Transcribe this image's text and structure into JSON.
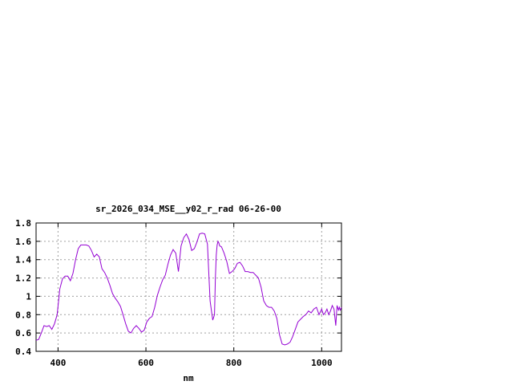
{
  "chart_data": {
    "type": "line",
    "title": "sr_2026_034_MSE__y02_r_rad 06-26-00",
    "xlabel": "nm",
    "ylabel": "",
    "xlim": [
      350,
      1045
    ],
    "ylim": [
      0.4,
      1.8
    ],
    "xticks": [
      {
        "value": 400,
        "label": "400"
      },
      {
        "value": 600,
        "label": "600"
      },
      {
        "value": 800,
        "label": "800"
      },
      {
        "value": 1000,
        "label": "1000"
      }
    ],
    "yticks": [
      {
        "value": 0.4,
        "label": "0.4"
      },
      {
        "value": 0.6,
        "label": "0.6"
      },
      {
        "value": 0.8,
        "label": "0.8"
      },
      {
        "value": 1.0,
        "label": "1"
      },
      {
        "value": 1.2,
        "label": "1.2"
      },
      {
        "value": 1.4,
        "label": "1.4"
      },
      {
        "value": 1.6,
        "label": "1.6"
      },
      {
        "value": 1.8,
        "label": "1.8"
      }
    ],
    "grid": true,
    "series": [
      {
        "color": "#9400d3",
        "x": [
          350,
          356,
          362,
          368,
          374,
          380,
          386,
          392,
          398,
          404,
          410,
          416,
          422,
          428,
          434,
          440,
          446,
          452,
          458,
          464,
          470,
          476,
          482,
          488,
          494,
          500,
          506,
          512,
          518,
          524,
          530,
          536,
          542,
          548,
          554,
          560,
          566,
          572,
          578,
          584,
          590,
          596,
          602,
          608,
          614,
          620,
          626,
          632,
          638,
          644,
          650,
          656,
          662,
          668,
          674,
          680,
          686,
          692,
          698,
          704,
          710,
          716,
          722,
          728,
          734,
          740,
          746,
          752,
          756,
          758,
          760,
          762,
          764,
          766,
          768,
          772,
          778,
          784,
          790,
          796,
          802,
          808,
          814,
          820,
          826,
          832,
          838,
          844,
          850,
          856,
          862,
          868,
          874,
          880,
          886,
          892,
          898,
          904,
          910,
          916,
          922,
          928,
          934,
          940,
          946,
          952,
          958,
          964,
          970,
          976,
          982,
          988,
          994,
          1000,
          1004,
          1008,
          1012,
          1016,
          1020,
          1024,
          1028,
          1032,
          1035,
          1038,
          1040,
          1042,
          1045
        ],
        "y": [
          0.52,
          0.53,
          0.6,
          0.68,
          0.67,
          0.68,
          0.64,
          0.7,
          0.8,
          1.08,
          1.19,
          1.22,
          1.22,
          1.17,
          1.25,
          1.4,
          1.52,
          1.56,
          1.56,
          1.56,
          1.55,
          1.5,
          1.43,
          1.46,
          1.43,
          1.3,
          1.26,
          1.2,
          1.12,
          1.03,
          0.98,
          0.94,
          0.89,
          0.8,
          0.7,
          0.62,
          0.6,
          0.65,
          0.68,
          0.65,
          0.61,
          0.63,
          0.72,
          0.76,
          0.78,
          0.88,
          1.01,
          1.1,
          1.18,
          1.23,
          1.35,
          1.45,
          1.51,
          1.47,
          1.27,
          1.55,
          1.64,
          1.68,
          1.62,
          1.5,
          1.52,
          1.59,
          1.68,
          1.69,
          1.68,
          1.57,
          0.95,
          0.74,
          0.8,
          1.2,
          1.45,
          1.56,
          1.6,
          1.58,
          1.55,
          1.54,
          1.47,
          1.38,
          1.25,
          1.27,
          1.3,
          1.36,
          1.37,
          1.33,
          1.27,
          1.27,
          1.26,
          1.26,
          1.23,
          1.2,
          1.1,
          0.95,
          0.9,
          0.88,
          0.88,
          0.84,
          0.76,
          0.58,
          0.48,
          0.47,
          0.48,
          0.5,
          0.56,
          0.64,
          0.72,
          0.75,
          0.78,
          0.8,
          0.84,
          0.82,
          0.86,
          0.88,
          0.8,
          0.86,
          0.8,
          0.82,
          0.86,
          0.8,
          0.84,
          0.9,
          0.86,
          0.68,
          0.9,
          0.85,
          0.88,
          0.85,
          0.88
        ]
      }
    ]
  }
}
